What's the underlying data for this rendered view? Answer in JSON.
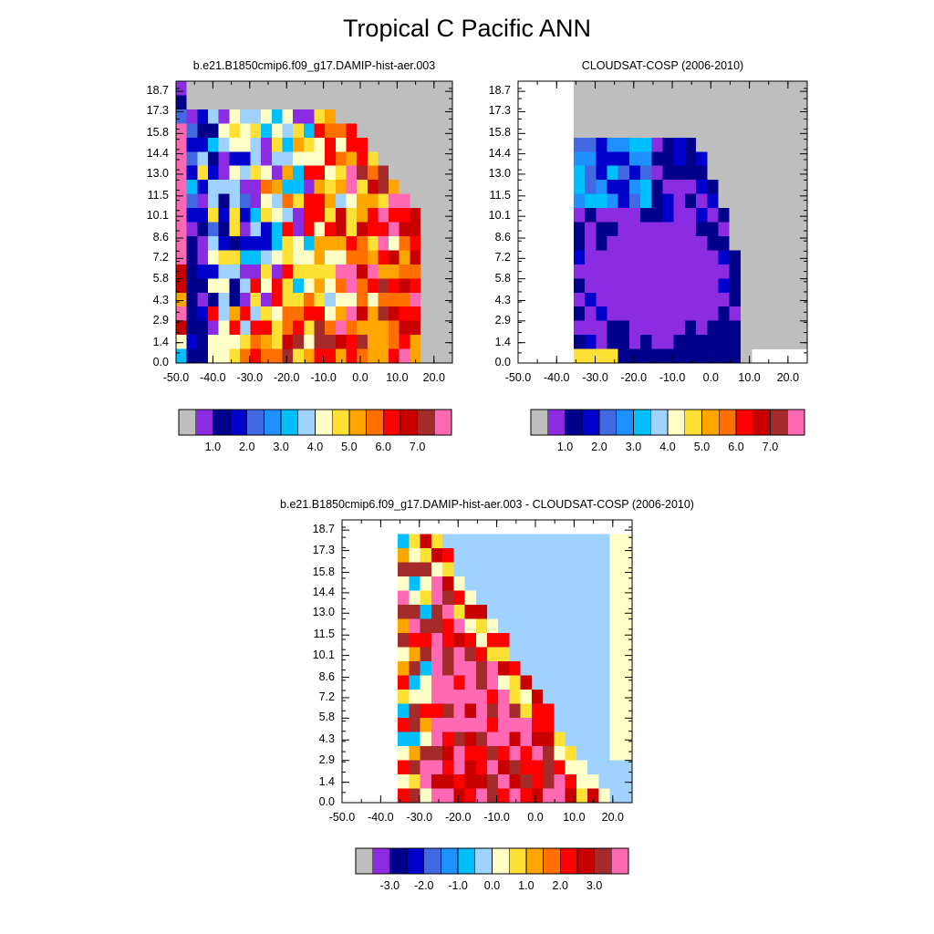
{
  "title": "Tropical C Pacific ANN",
  "chart_data": [
    {
      "type": "heatmap",
      "title": "b.e21.B1850cmip6.f09_g17.DAMIP-hist-aer.003",
      "y_ticks": [
        "0.0",
        "1.4",
        "2.9",
        "4.3",
        "5.8",
        "7.2",
        "8.6",
        "10.1",
        "11.5",
        "13.0",
        "14.4",
        "15.8",
        "17.3",
        "18.7"
      ],
      "x_ticks": [
        "-50.0",
        "-40.0",
        "-30.0",
        "-20.0",
        "-10.0",
        "0.0",
        "10.0",
        "20.0"
      ],
      "xlim": [
        -50,
        25
      ],
      "ylim": [
        0,
        19.4
      ],
      "colorbar_labels": [
        "1.0",
        "2.0",
        "3.0",
        "4.0",
        "5.0",
        "6.0",
        "7.0"
      ],
      "grid": [
        "gm00000000000000000000000000",
        "ldDl0000000000000000000000000",
        "qqqqmmD0000000000000000000000",
        "qqqqqRlmMl000000000000000000",
        "qqqqRRqMylyq00000000000000000",
        "qqqqqqYOoMylMmm000000000000000",
        "qqqqOOOyOYOMRMmm00000000000000",
        "qqqqlllOYYRqYMlDlD00000000000",
        "qqqqbbbbDYOqRRyyDl0000000000",
        "qqqqDDDbbbMOYRRyyyDmD0000000",
        "qqqqDDmmDDyoYROYRyDDq00000000",
        "qqqRDmmmDDmYyMOOYRYRmD000000",
        "qqqRDmmmDDmYyMOOYyYyRD000000",
        "qqRODmmmDRDyRqYRRrRRrm00000",
        "qqRODDDbbmyRMOYyyRqqqR000000",
        "qqqOYDDmmmyYYRMRylqqqql00000",
        "qqRYbbDDbyoYOYRmYqmmbD00000",
        "qqlDDDbDYYqYORoqqbqMD00000",
        "qqROqqqqRRqqqYRROMqqRqD00000",
        "qqmDDmqqqqROOYOMMMMmD000000"
      ]
    },
    {
      "type": "heatmap",
      "title": "CLOUDSAT-COSP (2006-2010)",
      "y_ticks": [
        "0.0",
        "1.4",
        "2.9",
        "4.3",
        "5.8",
        "7.2",
        "8.6",
        "10.1",
        "11.5",
        "13.0",
        "14.4",
        "15.8",
        "17.3",
        "18.7"
      ],
      "x_ticks": [
        "-50.0",
        "-40.0",
        "-30.0",
        "-20.0",
        "-10.0",
        "0.0",
        "10.0",
        "20.0"
      ],
      "xlim": [
        -50,
        25
      ],
      "ylim": [
        0,
        19.4
      ],
      "colorbar_labels": [
        "1.0",
        "2.0",
        "3.0",
        "4.0",
        "5.0",
        "6.0",
        "7.0"
      ]
    },
    {
      "type": "heatmap",
      "title": "b.e21.B1850cmip6.f09_g17.DAMIP-hist-aer.003 - CLOUDSAT-COSP (2006-2010)",
      "y_ticks": [
        "0.0",
        "1.4",
        "2.9",
        "4.3",
        "5.8",
        "7.2",
        "8.6",
        "10.1",
        "11.5",
        "13.0",
        "14.4",
        "15.8",
        "17.3",
        "18.7"
      ],
      "x_ticks": [
        "-50.0",
        "-40.0",
        "-30.0",
        "-20.0",
        "-10.0",
        "0.0",
        "10.0",
        "20.0"
      ],
      "xlim": [
        -50,
        25
      ],
      "ylim": [
        0,
        19.4
      ],
      "colorbar_labels": [
        "-3.0",
        "-2.0",
        "-1.0",
        "0.0",
        "1.0",
        "2.0",
        "3.0"
      ]
    }
  ],
  "colorbar_colors": [
    "#bebebe",
    "#8b2be2",
    "#00008b",
    "#0000cd",
    "#4169e1",
    "#1e90ff",
    "#00bfff",
    "#a0d2ff",
    "#ffffc8",
    "#ffe135",
    "#ffa500",
    "#ff7000",
    "#ff0000",
    "#c80000",
    "#a52a2a",
    "#ff69b4"
  ],
  "missing_color": "#bebebe"
}
